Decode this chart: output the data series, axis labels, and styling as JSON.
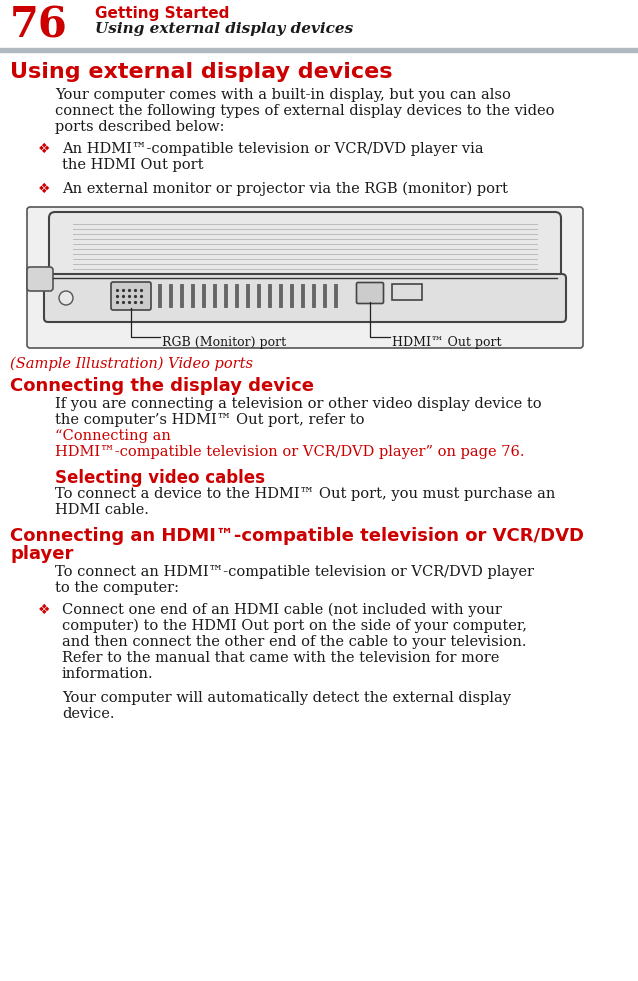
{
  "bg_color": "#ffffff",
  "red_color": "#cc0000",
  "black_color": "#1a1a1a",
  "gray_header_bg": "#b0b8c0",
  "page_number": "76",
  "header_title": "Getting Started",
  "header_subtitle": "Using external display devices",
  "section1_title": "Using external display devices",
  "section1_body_lines": [
    "Your computer comes with a built-in display, but you can also",
    "connect the following types of external display devices to the video",
    "ports described below:"
  ],
  "bullet1_lines": [
    "An HDMI™-compatible television or VCR/DVD player via",
    "the HDMI Out port"
  ],
  "bullet2_lines": [
    "An external monitor or projector via the RGB (monitor) port"
  ],
  "caption": "(Sample Illustration) Video ports",
  "label_rgb": "RGB (Monitor) port",
  "label_hdmi": "HDMI™ Out port",
  "section2_title": "Connecting the display device",
  "section2_body_black": [
    "If you are connecting a television or other video display device to",
    "the computer’s HDMI™ Out port, refer to "
  ],
  "section2_body_red": [
    "“Connecting an",
    "HDMI™-compatible television or VCR/DVD player” on page 76."
  ],
  "section3_title": "Selecting video cables",
  "section3_body_lines": [
    "To connect a device to the HDMI™ Out port, you must purchase an",
    "HDMI cable."
  ],
  "section4_title": "Connecting an HDMI™-compatible television or VCR/DVD",
  "section4_title2": "player",
  "section4_body_lines": [
    "To connect an HDMI™-compatible television or VCR/DVD player",
    "to the computer:"
  ],
  "bullet3_lines": [
    "Connect one end of an HDMI cable (not included with your",
    "computer) to the HDMI Out port on the side of your computer,",
    "and then connect the other end of the cable to your television.",
    "Refer to the manual that came with the television for more",
    "information."
  ],
  "bullet3_sub_lines": [
    "Your computer will automatically detect the external display",
    "device."
  ]
}
